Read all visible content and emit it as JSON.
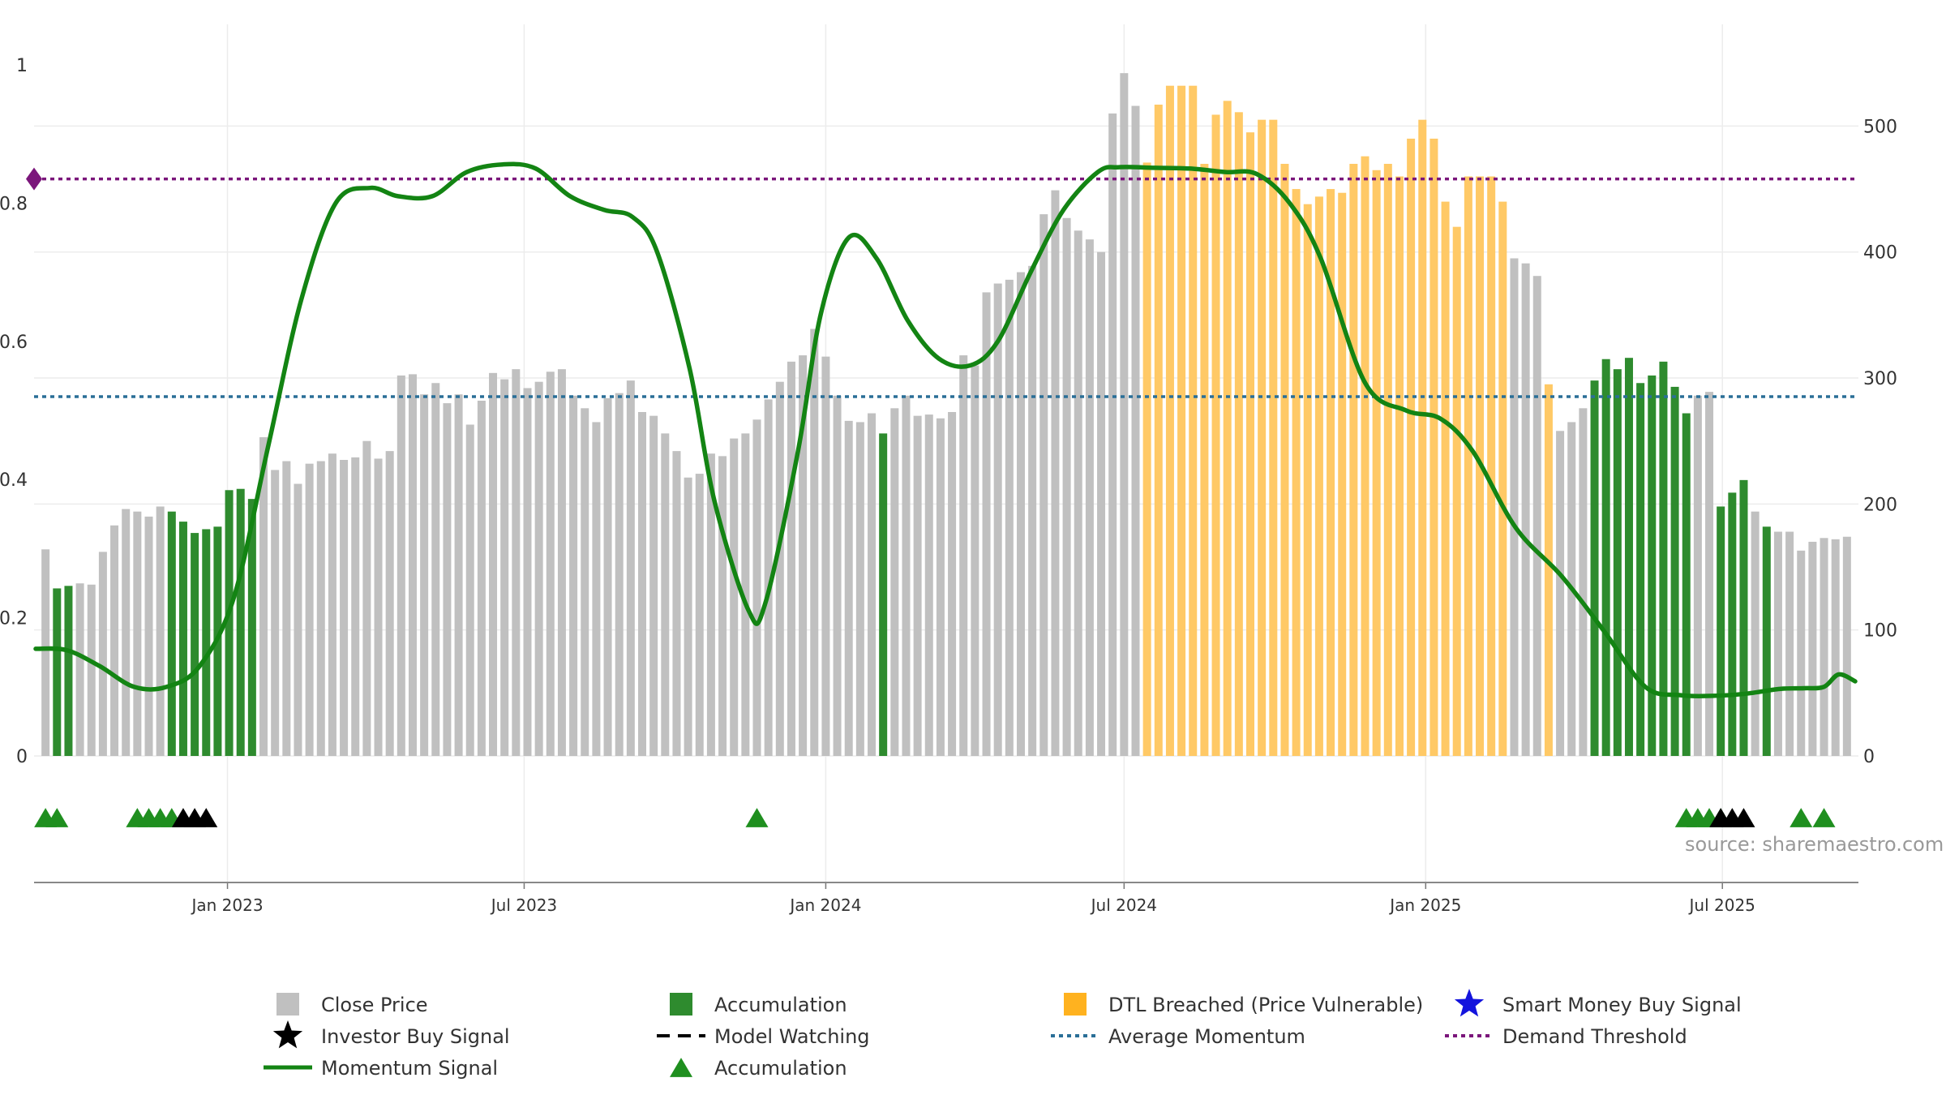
{
  "chart_data": {
    "type": "bar",
    "source_text": "source: sharemaestro.com",
    "colors": {
      "close": "#c0c0c0",
      "accumulation": "#2e8b2e",
      "dtl": "#ffc966",
      "momentum": "#138413",
      "average": "#2a6f97",
      "demand": "#7b167b",
      "triangle": "#1f8f1f",
      "star_investor": "#000000",
      "star_smart": "#1414dd"
    },
    "left_axis": {
      "min": 0,
      "max": 1,
      "ticks": [
        0,
        0.2,
        0.4,
        0.6,
        0.8,
        1
      ],
      "tick_labels": [
        "0",
        "0.2",
        "0.4",
        "0.6",
        "0.8",
        "1"
      ]
    },
    "right_axis": {
      "min": 0,
      "max": 564,
      "ticks": [
        0,
        100,
        200,
        300,
        400,
        500
      ],
      "tick_labels": [
        "0",
        "100",
        "200",
        "300",
        "400",
        "500"
      ]
    },
    "x_axis": {
      "start": "2022-09-05",
      "end": "2025-09-22",
      "ticks": [
        {
          "date": "2023-01-01",
          "label": "Jan 2023"
        },
        {
          "date": "2023-07-01",
          "label": "Jul 2023"
        },
        {
          "date": "2024-01-01",
          "label": "Jan 2024"
        },
        {
          "date": "2024-07-01",
          "label": "Jul 2024"
        },
        {
          "date": "2025-01-01",
          "label": "Jan 2025"
        },
        {
          "date": "2025-07-01",
          "label": "Jul 2025"
        }
      ]
    },
    "average_momentum": 0.52,
    "demand_threshold": 0.835,
    "bars_start": "2022-09-12",
    "bar_interval_days": 7,
    "close_prices": [
      164,
      133,
      135,
      137,
      136,
      162,
      183,
      196,
      194,
      190,
      198,
      194,
      186,
      177,
      180,
      182,
      211,
      212,
      204,
      253,
      227,
      234,
      216,
      232,
      234,
      240,
      235,
      237,
      250,
      236,
      242,
      302,
      303,
      287,
      296,
      280,
      287,
      263,
      282,
      304,
      299,
      307,
      292,
      297,
      305,
      307,
      286,
      276,
      265,
      284,
      288,
      298,
      273,
      270,
      256,
      242,
      221,
      224,
      240,
      238,
      252,
      256,
      267,
      283,
      297,
      313,
      318,
      339,
      317,
      286,
      266,
      265,
      272,
      256,
      276,
      286,
      270,
      271,
      268,
      273,
      318,
      310,
      368,
      375,
      378,
      384,
      389,
      430,
      449,
      427,
      417,
      410,
      400,
      510,
      542,
      516,
      471,
      517,
      532,
      532,
      532,
      470,
      509,
      520,
      511,
      495,
      505,
      505,
      470,
      450,
      438,
      444,
      450,
      447,
      470,
      476,
      465,
      470,
      460,
      490,
      505,
      490,
      440,
      420,
      460,
      460,
      460,
      440,
      395,
      391,
      381,
      295,
      258,
      265,
      276,
      298,
      315,
      307,
      316,
      296,
      302,
      313,
      293,
      272,
      286,
      289,
      198,
      209,
      219,
      194,
      182,
      178,
      178,
      163,
      170,
      173,
      172,
      174
    ],
    "accumulation_indices": [
      1,
      2,
      11,
      12,
      13,
      14,
      15,
      16,
      17,
      18,
      73,
      135,
      136,
      137,
      138,
      139,
      140,
      141,
      142,
      143,
      146,
      147,
      148,
      150
    ],
    "dtl_indices": [
      96,
      97,
      98,
      99,
      100,
      101,
      102,
      103,
      104,
      105,
      106,
      107,
      108,
      109,
      110,
      111,
      112,
      113,
      114,
      115,
      116,
      117,
      118,
      119,
      120,
      121,
      122,
      123,
      124,
      125,
      126,
      127,
      131,
      135,
      136,
      137,
      142
    ],
    "momentum": {
      "dates": [
        "2022-09-06",
        "2022-09-25",
        "2022-10-15",
        "2022-11-05",
        "2022-11-25",
        "2022-12-15",
        "2023-01-05",
        "2023-01-26",
        "2023-02-15",
        "2023-03-08",
        "2023-03-29",
        "2023-04-15",
        "2023-05-06",
        "2023-05-27",
        "2023-06-18",
        "2023-07-08",
        "2023-07-29",
        "2023-08-19",
        "2023-09-05",
        "2023-09-20",
        "2023-10-10",
        "2023-10-25",
        "2023-11-15",
        "2023-11-25",
        "2023-12-15",
        "2023-12-29",
        "2024-01-15",
        "2024-02-01",
        "2024-02-20",
        "2024-03-10",
        "2024-03-29",
        "2024-04-15",
        "2024-05-05",
        "2024-05-25",
        "2024-06-15",
        "2024-06-28",
        "2024-07-20",
        "2024-08-10",
        "2024-09-01",
        "2024-09-20",
        "2024-10-10",
        "2024-10-29",
        "2024-11-25",
        "2024-12-20",
        "2025-01-10",
        "2025-01-30",
        "2025-02-25",
        "2025-03-25",
        "2025-04-20",
        "2025-05-15",
        "2025-06-05",
        "2025-06-25",
        "2025-07-15",
        "2025-08-05",
        "2025-08-20",
        "2025-09-01",
        "2025-09-10",
        "2025-09-20"
      ],
      "values": [
        0.155,
        0.153,
        0.13,
        0.1,
        0.1,
        0.13,
        0.23,
        0.45,
        0.66,
        0.8,
        0.822,
        0.81,
        0.81,
        0.845,
        0.856,
        0.85,
        0.81,
        0.79,
        0.78,
        0.73,
        0.56,
        0.37,
        0.21,
        0.22,
        0.44,
        0.64,
        0.75,
        0.72,
        0.63,
        0.575,
        0.565,
        0.6,
        0.7,
        0.79,
        0.845,
        0.852,
        0.851,
        0.85,
        0.845,
        0.842,
        0.8,
        0.72,
        0.54,
        0.5,
        0.488,
        0.44,
        0.33,
        0.26,
        0.18,
        0.1,
        0.088,
        0.087,
        0.09,
        0.097,
        0.098,
        0.1,
        0.118,
        0.108
      ]
    },
    "triangle_dates": [
      "2022-09-12",
      "2022-09-19",
      "2022-11-07",
      "2022-11-14",
      "2022-11-21",
      "2022-11-28",
      "2023-11-20",
      "2025-06-09",
      "2025-06-16",
      "2025-06-23",
      "2025-06-30",
      "2025-08-18",
      "2025-09-01"
    ],
    "star_dates": [
      "2022-12-05",
      "2022-12-12",
      "2022-12-19",
      "2025-06-30",
      "2025-07-07",
      "2025-07-14"
    ],
    "legend": [
      {
        "label": "Close Price",
        "symbol": "square",
        "color": "#c0c0c0"
      },
      {
        "label": "Accumulation",
        "symbol": "square",
        "color": "#2e8b2e"
      },
      {
        "label": "DTL Breached (Price Vulnerable)",
        "symbol": "square",
        "color": "#ffb21f"
      },
      {
        "label": "Smart Money Buy Signal",
        "symbol": "star",
        "color": "#1414dd"
      },
      {
        "label": "Investor Buy Signal",
        "symbol": "star",
        "color": "#000000"
      },
      {
        "label": "Model Watching",
        "symbol": "dash",
        "color": "#000000"
      },
      {
        "label": "Average Momentum",
        "symbol": "dotted",
        "color": "#2a6f97"
      },
      {
        "label": "Demand Threshold",
        "symbol": "dotted",
        "color": "#7b167b"
      },
      {
        "label": "Momentum Signal",
        "symbol": "line",
        "color": "#138413"
      },
      {
        "label": "Accumulation",
        "symbol": "triangle",
        "color": "#1f8f1f"
      }
    ]
  }
}
